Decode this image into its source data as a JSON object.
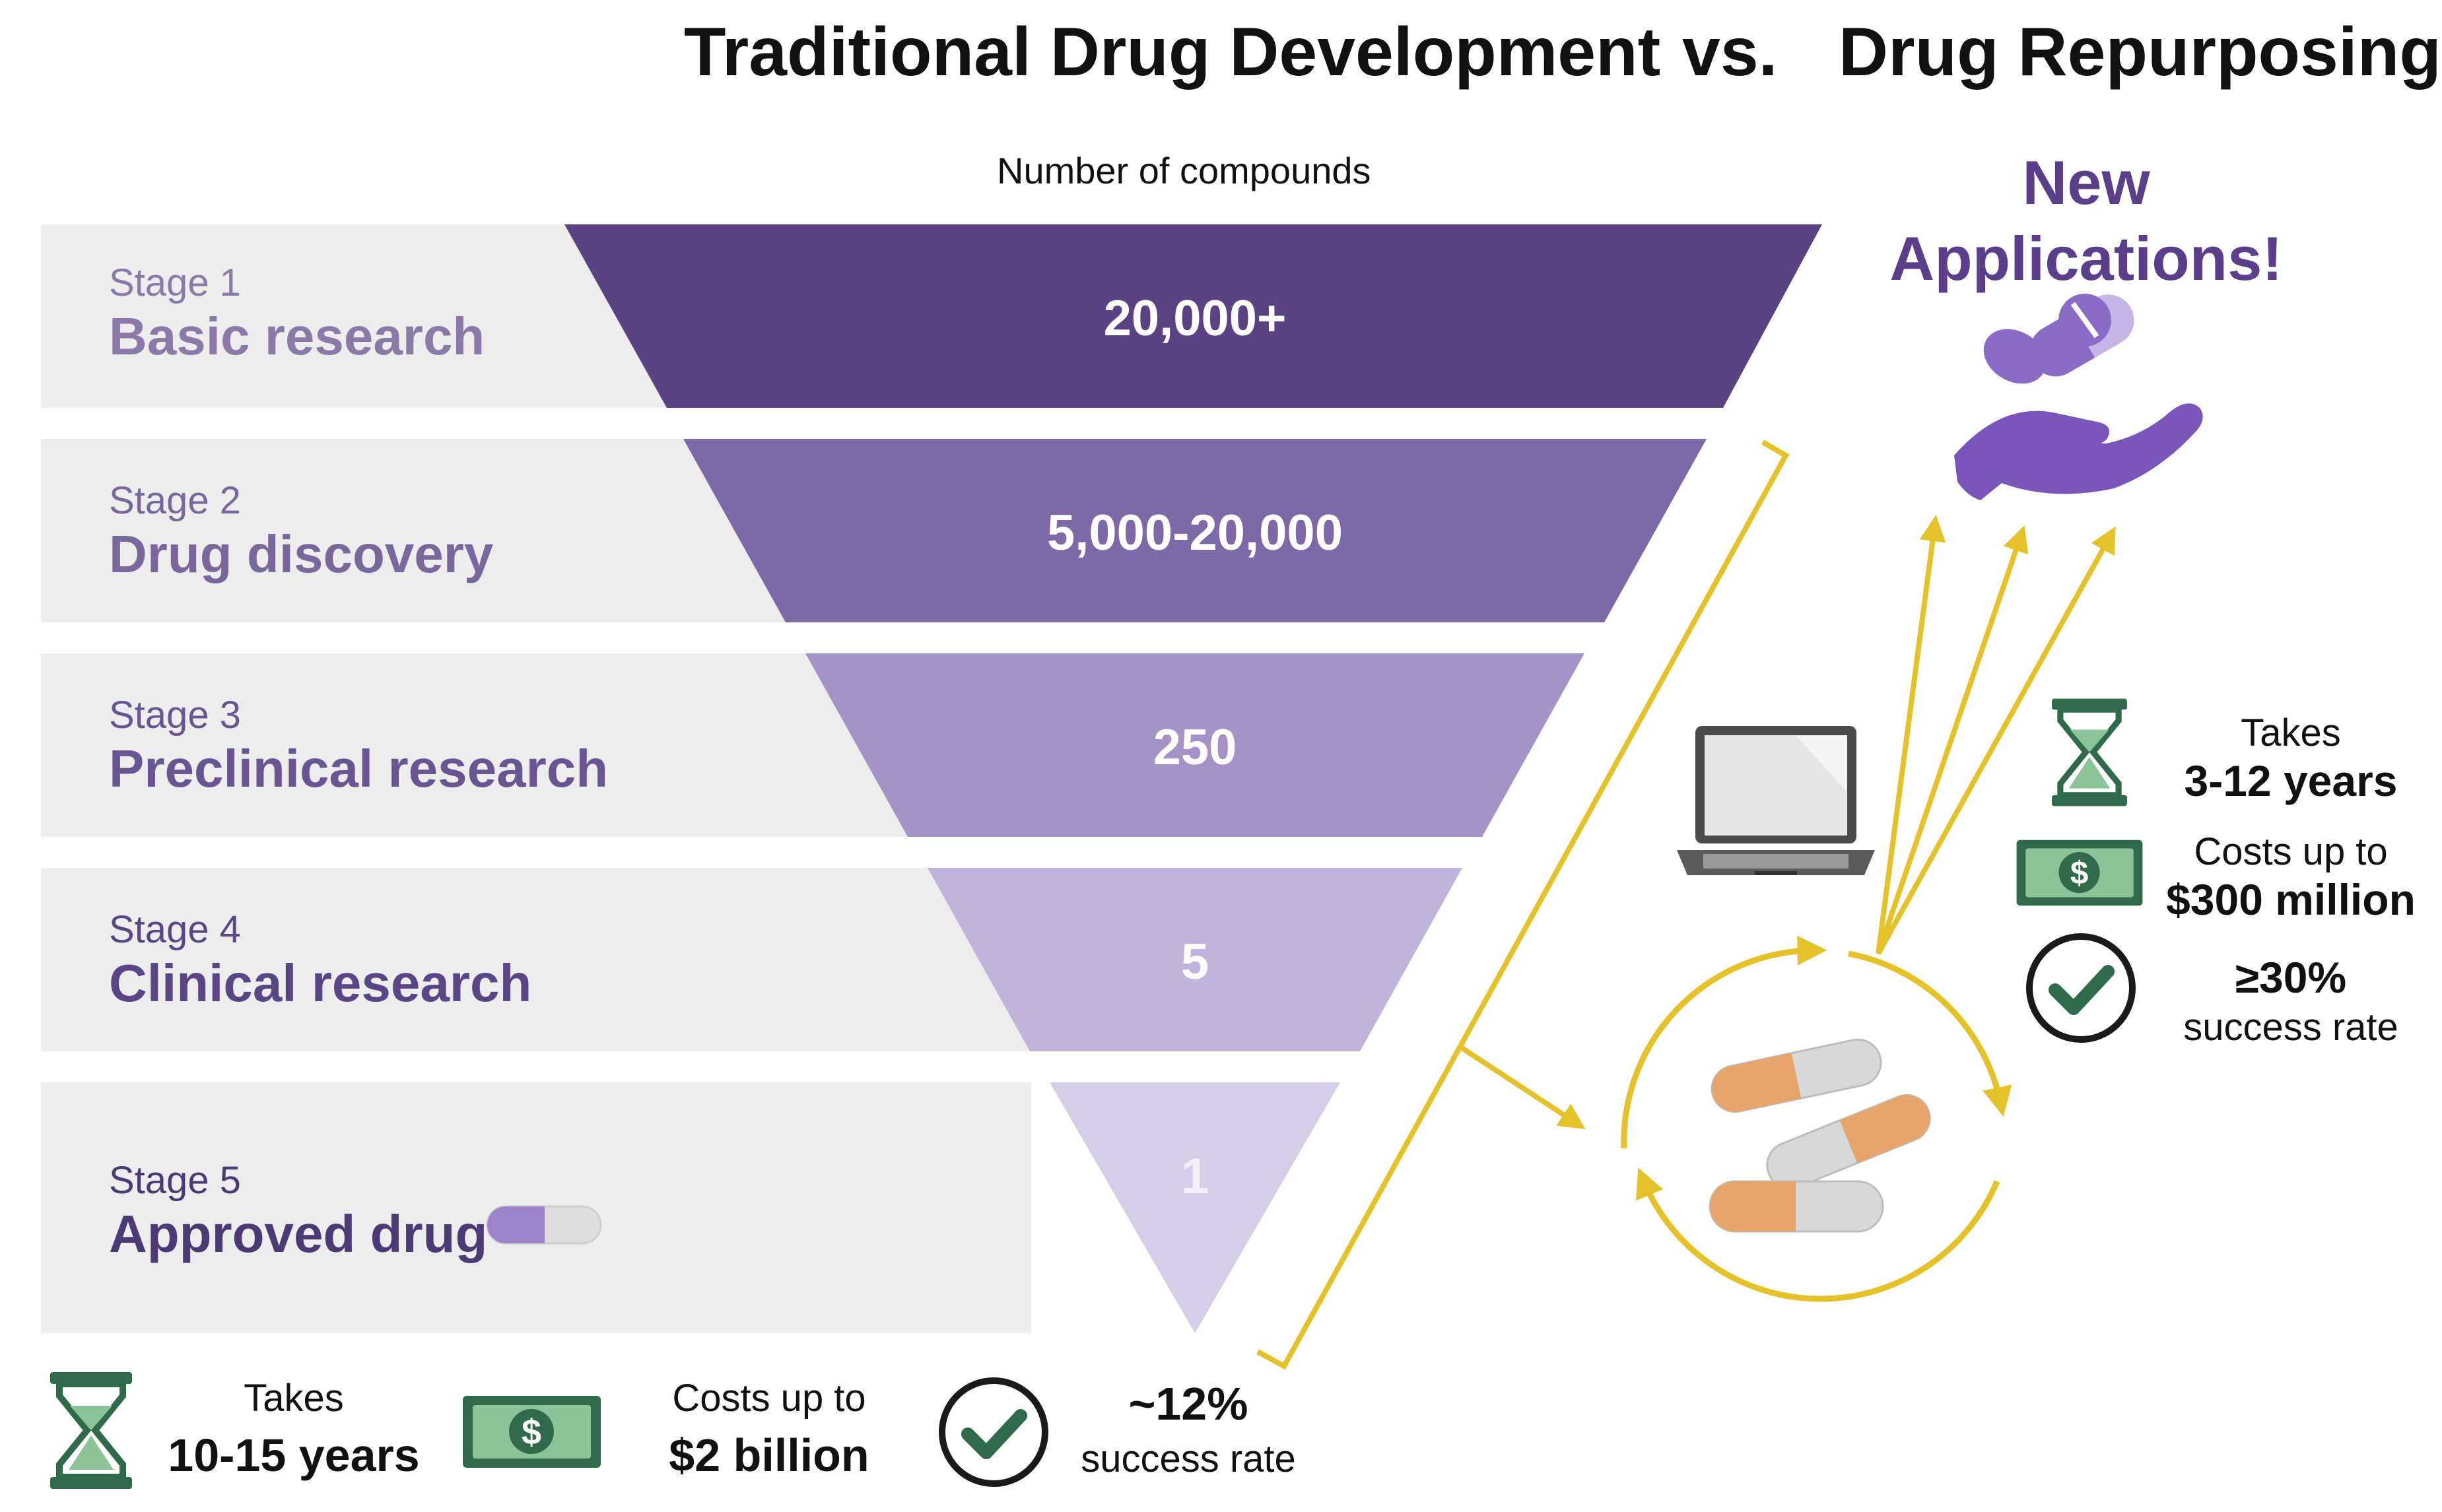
{
  "header": {
    "left_title": "Traditional Drug Development",
    "vs": "vs.",
    "right_title": "Drug Repurposing",
    "subtitle": "Number of compounds"
  },
  "stages": [
    {
      "label": "Stage 1",
      "name": "Basic research",
      "value": "20,000+",
      "color": "#5b4383",
      "band": "#ededed",
      "label_color": "#8b7aa8",
      "name_color": "#8b7aa8"
    },
    {
      "label": "Stage 2",
      "name": "Drug discovery",
      "value": "5,000-20,000",
      "color": "#7f68a8",
      "band": "#ededed",
      "label_color": "#7a679c",
      "name_color": "#7a679c"
    },
    {
      "label": "Stage 3",
      "name": "Preclinical research",
      "value": "250",
      "color": "#a593c8",
      "band": "#ededed",
      "label_color": "#6a5593",
      "name_color": "#6a5593"
    },
    {
      "label": "Stage 4",
      "name": "Clinical research",
      "value": "5",
      "color": "#c0b3dc",
      "band": "#ededed",
      "label_color": "#5a4585",
      "name_color": "#5a4585"
    },
    {
      "label": "Stage 5",
      "name": "Approved drug",
      "value": "1",
      "color": "#d6cde9",
      "band": "#ededed",
      "label_color": "#4b3a73",
      "name_color": "#4b3a73"
    }
  ],
  "traditional_metrics": {
    "time_top": "Takes",
    "time_bottom": "10-15 years",
    "cost_top": "Costs up to",
    "cost_bottom": "$2 billion",
    "success_top": "~12%",
    "success_bottom": "success rate"
  },
  "repurposing": {
    "headline_line1": "New",
    "headline_line2": "Applications!",
    "time_top": "Takes",
    "time_bottom": "3-12 years",
    "cost_top": "Costs up to",
    "cost_bottom": "$300 million",
    "success_top": "≥30%",
    "success_bottom": "success rate"
  },
  "icons": {
    "hourglass": "hourglass-icon",
    "money": "dollar-bill-icon",
    "check": "checkmark-circle-icon",
    "laptop": "laptop-icon",
    "pills": "capsule-icon",
    "hand": "hand-with-pills-icon",
    "cycle": "recycle-arrows-icon"
  },
  "colors": {
    "accent_purple": "#5b3f8a",
    "arrow_yellow": "#e6c22a",
    "green": "#2f6b4a",
    "capsule_orange": "#e8a56b",
    "capsule_grey": "#d8d8d8"
  }
}
